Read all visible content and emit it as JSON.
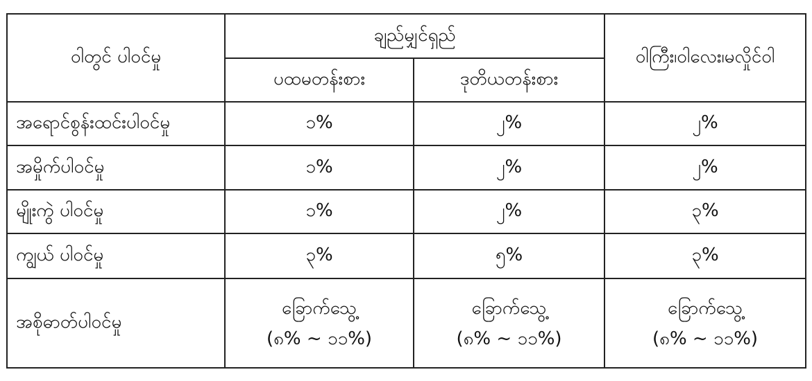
{
  "table": {
    "header": {
      "col1": "ဝါတွင် ပါဝင်မှု",
      "group": "ချည်မျှင်ရှည်",
      "sub1": "ပထမတန်းစား",
      "sub2": "ဒုတိယတန်းစား",
      "col4": "ဝါကြီး၊ဝါလေး၊မလှိုင်ဝါ"
    },
    "rows": [
      {
        "label": "အရောင်စွန်းထင်းပါဝင်မှု",
        "values": [
          "၁%",
          "၂%",
          "၂%"
        ]
      },
      {
        "label": "အမှိုက်ပါဝင်မှု",
        "values": [
          "၁%",
          "၂%",
          "၂%"
        ]
      },
      {
        "label": "မျိုးကွဲ ပါဝင်မှု",
        "values": [
          "၁%",
          "၂%",
          "၃%"
        ]
      },
      {
        "label": "ကျွယ် ပါဝင်မှု",
        "values": [
          "၃%",
          "၅%",
          "၃%"
        ]
      }
    ],
    "moisture": {
      "label": "အစိုဓာတ်ပါဝင်မှု",
      "cells": [
        {
          "status": "ခြောက်သွေ့",
          "range": "(၈% ~ ၁၁%)"
        },
        {
          "status": "ခြောက်သွေ့",
          "range": "(၈% ~ ၁၁%)"
        },
        {
          "status": "ခြောက်သွေ့",
          "range": "(၈% ~ ၁၁%)"
        }
      ]
    }
  }
}
